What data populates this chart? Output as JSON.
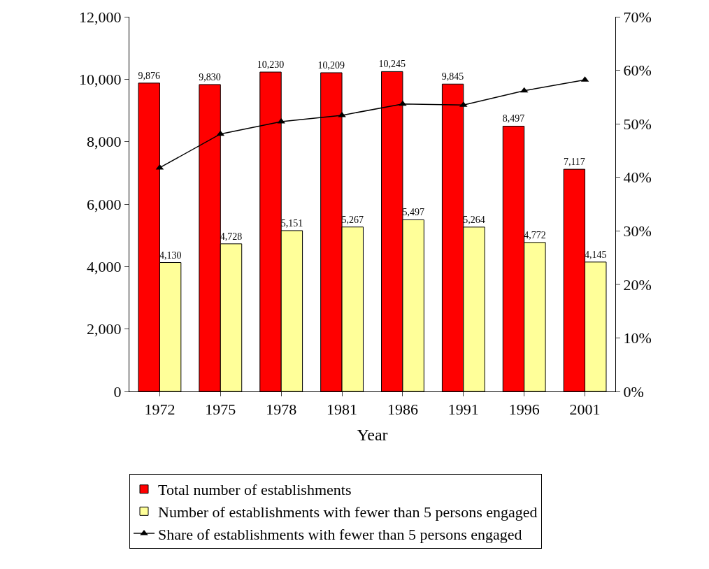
{
  "chart_data": {
    "type": "bar",
    "xlabel": "Year",
    "categories": [
      "1972",
      "1975",
      "1978",
      "1981",
      "1986",
      "1991",
      "1996",
      "2001"
    ],
    "series": [
      {
        "name": "Total number of establishments",
        "color": "#ff0000",
        "values": [
          9876,
          9830,
          10230,
          10209,
          10245,
          9845,
          8497,
          7117
        ],
        "value_labels": [
          "9,876",
          "9,830",
          "10,230",
          "10,209",
          "10,245",
          "9,845",
          "8,497",
          "7,117"
        ]
      },
      {
        "name": "Number of establishments with fewer than 5 persons engaged",
        "color": "#ffff99",
        "values": [
          4130,
          4728,
          5151,
          5267,
          5497,
          5264,
          4772,
          4145
        ],
        "value_labels": [
          "4,130",
          "4,728",
          "5,151",
          "5,267",
          "5,497",
          "5,264",
          "4,772",
          "4,145"
        ]
      },
      {
        "name": "Share of establishments with fewer than 5 persons engaged",
        "type": "line",
        "axis": "y2",
        "color": "#000000",
        "marker": "triangle",
        "values": [
          41.8,
          48.1,
          50.4,
          51.6,
          53.7,
          53.5,
          56.2,
          58.2
        ]
      }
    ],
    "ylim": [
      0,
      12000
    ],
    "yticks": [
      0,
      {
        "value": 2000,
        "label": "2,000"
      },
      {
        "value": 4000,
        "label": "4,000"
      },
      {
        "value": 6000,
        "label": "6,000"
      },
      {
        "value": 8000,
        "label": "8,000"
      },
      {
        "value": 10000,
        "label": "10,000"
      },
      {
        "value": 12000,
        "label": "12,000"
      }
    ],
    "y2lim": [
      0,
      70
    ],
    "y2ticks": [
      {
        "value": 0,
        "label": "0%"
      },
      {
        "value": 10,
        "label": "10%"
      },
      {
        "value": 20,
        "label": "20%"
      },
      {
        "value": 30,
        "label": "30%"
      },
      {
        "value": 40,
        "label": "40%"
      },
      {
        "value": 50,
        "label": "50%"
      },
      {
        "value": 60,
        "label": "60%"
      },
      {
        "value": 70,
        "label": "70%"
      }
    ],
    "legend": "bottom"
  }
}
